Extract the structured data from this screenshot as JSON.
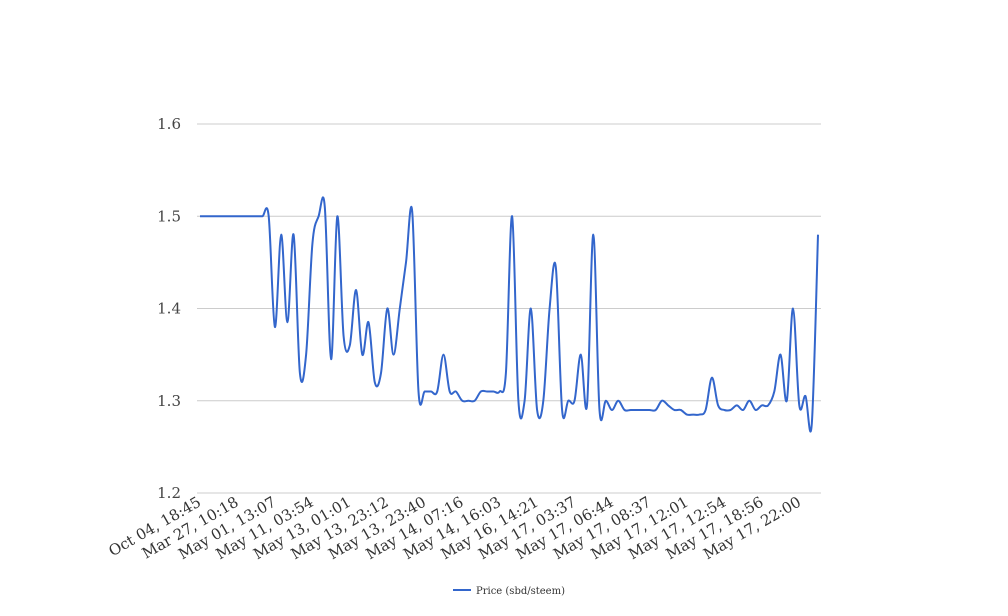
{
  "chart_data": {
    "type": "line",
    "title": "",
    "xlabel": "",
    "ylabel": "",
    "ylim": [
      1.2,
      1.6
    ],
    "yticks": [
      "1.2",
      "1.3",
      "1.4",
      "1.5",
      "1.6"
    ],
    "x_tick_labels": [
      "Oct 04, 18:45",
      "Mar 27, 10:18",
      "May 01, 13:07",
      "May 11, 03:54",
      "May 13, 01:01",
      "May 13, 23:12",
      "May 13, 23:40",
      "May 14, 07:16",
      "May 14, 16:03",
      "May 16, 14:21",
      "May 17, 03:37",
      "May 17, 06:44",
      "May 17, 08:37",
      "May 17, 12:01",
      "May 17, 12:54",
      "May 17, 18:56",
      "May 17, 22:00"
    ],
    "grid": true,
    "legend_position": "bottom",
    "series": [
      {
        "name": "Price (sbd/steem)",
        "color": "#3366cc",
        "values": [
          1.5,
          1.5,
          1.5,
          1.5,
          1.5,
          1.5,
          1.5,
          1.5,
          1.5,
          1.5,
          1.5,
          1.5,
          1.38,
          1.48,
          1.385,
          1.48,
          1.33,
          1.35,
          1.47,
          1.5,
          1.51,
          1.345,
          1.5,
          1.37,
          1.36,
          1.42,
          1.35,
          1.385,
          1.32,
          1.33,
          1.4,
          1.35,
          1.4,
          1.45,
          1.505,
          1.31,
          1.31,
          1.31,
          1.31,
          1.35,
          1.31,
          1.31,
          1.3,
          1.3,
          1.3,
          1.31,
          1.31,
          1.31,
          1.31,
          1.33,
          1.5,
          1.3,
          1.3,
          1.4,
          1.29,
          1.3,
          1.4,
          1.445,
          1.29,
          1.3,
          1.3,
          1.35,
          1.295,
          1.48,
          1.29,
          1.3,
          1.29,
          1.3,
          1.29,
          1.29,
          1.29,
          1.29,
          1.29,
          1.29,
          1.3,
          1.295,
          1.29,
          1.29,
          1.285,
          1.285,
          1.285,
          1.29,
          1.325,
          1.295,
          1.29,
          1.29,
          1.295,
          1.29,
          1.3,
          1.29,
          1.295,
          1.295,
          1.31,
          1.35,
          1.3,
          1.4,
          1.295,
          1.305,
          1.275,
          1.48
        ]
      }
    ]
  }
}
